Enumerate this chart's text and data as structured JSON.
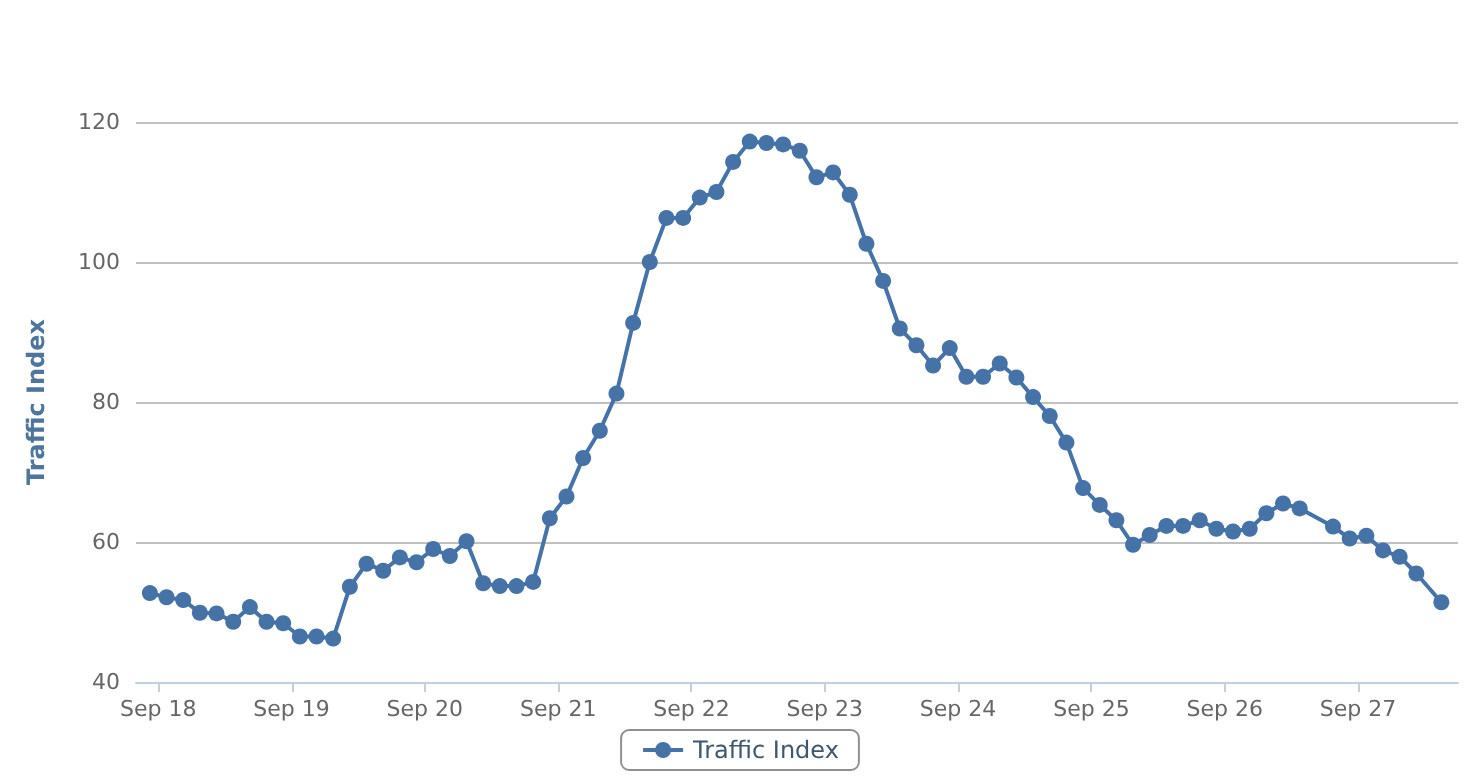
{
  "chart_data": {
    "type": "line",
    "ylabel": "Traffic Index",
    "xlim": [
      "--09-17T20:00",
      "--09-27T18:00"
    ],
    "xticks": [
      {
        "value": "--09-18",
        "label": "Sep 18"
      },
      {
        "value": "--09-19",
        "label": "Sep 19"
      },
      {
        "value": "--09-20",
        "label": "Sep 20"
      },
      {
        "value": "--09-21",
        "label": "Sep 21"
      },
      {
        "value": "--09-22",
        "label": "Sep 22"
      },
      {
        "value": "--09-23",
        "label": "Sep 23"
      },
      {
        "value": "--09-24",
        "label": "Sep 24"
      },
      {
        "value": "--09-25",
        "label": "Sep 25"
      },
      {
        "value": "--09-26",
        "label": "Sep 26"
      },
      {
        "value": "--09-27",
        "label": "Sep 27"
      }
    ],
    "ylim": [
      40,
      120
    ],
    "yticks": [
      40,
      60,
      80,
      100,
      120
    ],
    "grid": "y",
    "legend": "bottom",
    "marker": "circle",
    "line_style": "solid",
    "x": [
      "--09-17T22:30",
      "--09-18T01:30",
      "--09-18T04:30",
      "--09-18T07:30",
      "--09-18T10:30",
      "--09-18T13:30",
      "--09-18T16:30",
      "--09-18T19:30",
      "--09-18T22:30",
      "--09-19T01:30",
      "--09-19T04:30",
      "--09-19T07:30",
      "--09-19T10:30",
      "--09-19T13:30",
      "--09-19T16:30",
      "--09-19T19:30",
      "--09-19T22:30",
      "--09-20T01:30",
      "--09-20T04:30",
      "--09-20T07:30",
      "--09-20T10:30",
      "--09-20T13:30",
      "--09-20T16:30",
      "--09-20T19:30",
      "--09-20T22:30",
      "--09-21T01:30",
      "--09-21T04:30",
      "--09-21T07:30",
      "--09-21T10:30",
      "--09-21T13:30",
      "--09-21T16:30",
      "--09-21T19:30",
      "--09-21T22:30",
      "--09-22T01:30",
      "--09-22T04:30",
      "--09-22T07:30",
      "--09-22T10:30",
      "--09-22T13:30",
      "--09-22T16:30",
      "--09-22T19:30",
      "--09-22T22:30",
      "--09-23T01:30",
      "--09-23T04:30",
      "--09-23T07:30",
      "--09-23T10:30",
      "--09-23T13:30",
      "--09-23T16:30",
      "--09-23T19:30",
      "--09-23T22:30",
      "--09-24T01:30",
      "--09-24T04:30",
      "--09-24T07:30",
      "--09-24T10:30",
      "--09-24T13:30",
      "--09-24T16:30",
      "--09-24T19:30",
      "--09-24T22:30",
      "--09-25T01:30",
      "--09-25T04:30",
      "--09-25T07:30",
      "--09-25T10:30",
      "--09-25T13:30",
      "--09-25T16:30",
      "--09-25T19:30",
      "--09-25T22:30",
      "--09-26T01:30",
      "--09-26T04:30",
      "--09-26T07:30",
      "--09-26T10:30",
      "--09-26T13:30",
      "--09-26T19:30",
      "--09-26T22:30",
      "--09-27T01:30",
      "--09-27T04:30",
      "--09-27T07:30",
      "--09-27T10:30",
      "--09-27T15:00"
    ],
    "series": [
      {
        "name": "Traffic Index",
        "color": "#4572a7",
        "values": [
          52.7,
          52.1,
          51.7,
          49.9,
          49.8,
          48.6,
          50.7,
          48.6,
          48.4,
          46.5,
          46.5,
          46.2,
          53.6,
          56.9,
          55.9,
          57.8,
          57.1,
          59.0,
          58.0,
          60.1,
          54.1,
          53.7,
          53.7,
          54.3,
          63.4,
          66.5,
          72.0,
          75.9,
          81.2,
          91.3,
          100.0,
          106.3,
          106.3,
          109.2,
          110.0,
          114.3,
          117.2,
          117.0,
          116.8,
          115.9,
          112.1,
          112.8,
          109.6,
          102.6,
          97.3,
          90.5,
          88.1,
          85.2,
          87.7,
          83.6,
          83.6,
          85.5,
          83.5,
          80.7,
          78.0,
          74.2,
          67.7,
          65.3,
          63.1,
          59.6,
          61.0,
          62.3,
          62.3,
          63.1,
          61.9,
          61.5,
          61.9,
          64.1,
          65.5,
          64.8,
          62.2,
          60.5,
          60.9,
          58.8,
          57.9,
          55.5,
          51.4
        ]
      }
    ]
  }
}
